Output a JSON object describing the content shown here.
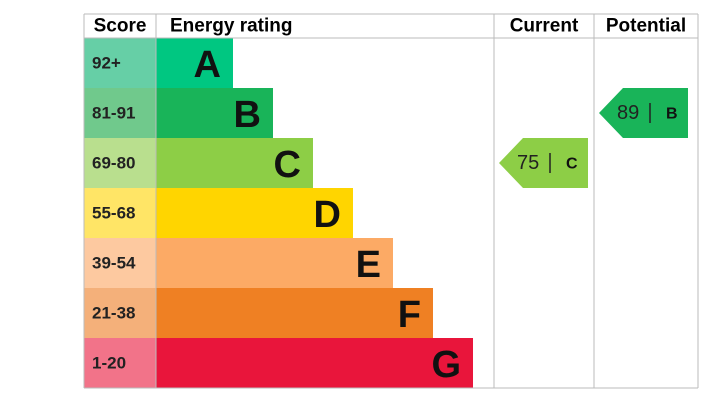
{
  "header": {
    "score": "Score",
    "rating": "Energy rating",
    "current": "Current",
    "potential": "Potential"
  },
  "bands": [
    {
      "score": "92+",
      "letter": "A",
      "color": "#00c781",
      "light": "#66cfa6"
    },
    {
      "score": "81-91",
      "letter": "B",
      "color": "#19b459",
      "light": "#70c98c"
    },
    {
      "score": "69-80",
      "letter": "C",
      "color": "#8dce46",
      "light": "#b9df8e"
    },
    {
      "score": "55-68",
      "letter": "D",
      "color": "#ffd500",
      "light": "#ffe566"
    },
    {
      "score": "39-54",
      "letter": "E",
      "color": "#fcaa65",
      "light": "#fdc9a0"
    },
    {
      "score": "21-38",
      "letter": "F",
      "color": "#ef8023",
      "light": "#f4b07a"
    },
    {
      "score": "1-20",
      "letter": "G",
      "color": "#e9153b",
      "light": "#f27389"
    }
  ],
  "current": {
    "value": 75,
    "letter": "C"
  },
  "potential": {
    "value": 89,
    "letter": "B"
  }
}
